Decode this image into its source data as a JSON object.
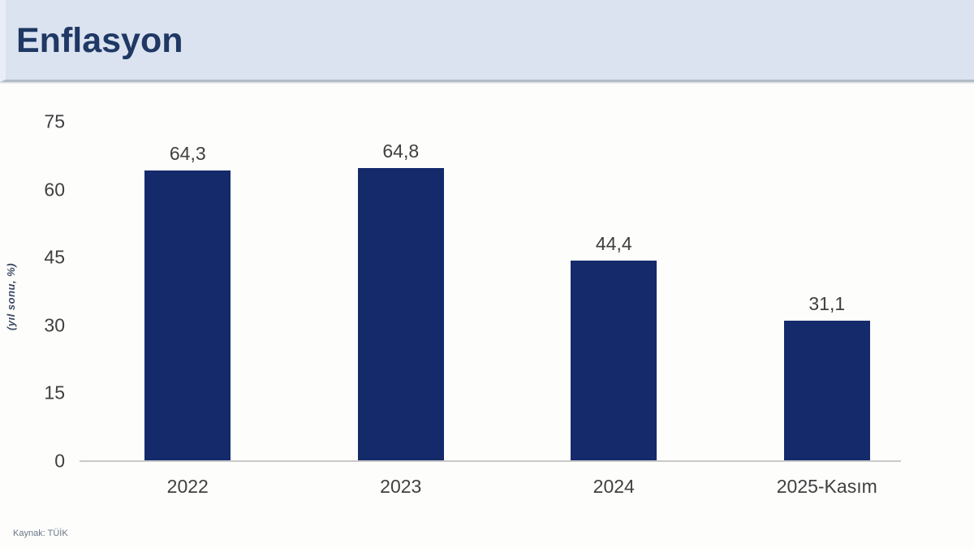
{
  "header": {
    "title": "Enflasyon"
  },
  "footer": {
    "source": "Kaynak: TÜİK"
  },
  "chart_data": {
    "type": "bar",
    "title": "Enflasyon",
    "categories": [
      "2022",
      "2023",
      "2024",
      "2025-Kasım"
    ],
    "values": [
      64.3,
      64.8,
      44.4,
      31.1
    ],
    "value_labels": [
      "64,3",
      "64,8",
      "44,4",
      "31,1"
    ],
    "xlabel": "",
    "ylabel": "(yıl sonu, %)",
    "ylim": [
      0,
      75
    ],
    "yticks": [
      0,
      15,
      30,
      45,
      60,
      75
    ],
    "grid": false,
    "legend": false,
    "bar_color": "#142a6b",
    "label_color": "#404040",
    "axis_line_color": "#c9c9c9",
    "source": "Kaynak: TÜİK"
  },
  "colors": {
    "banner_bg": "#dbe3f0",
    "title_text": "#1f3864",
    "bar": "#142a6b",
    "axis_line": "#c9c9c9",
    "tick_text": "#404040"
  }
}
